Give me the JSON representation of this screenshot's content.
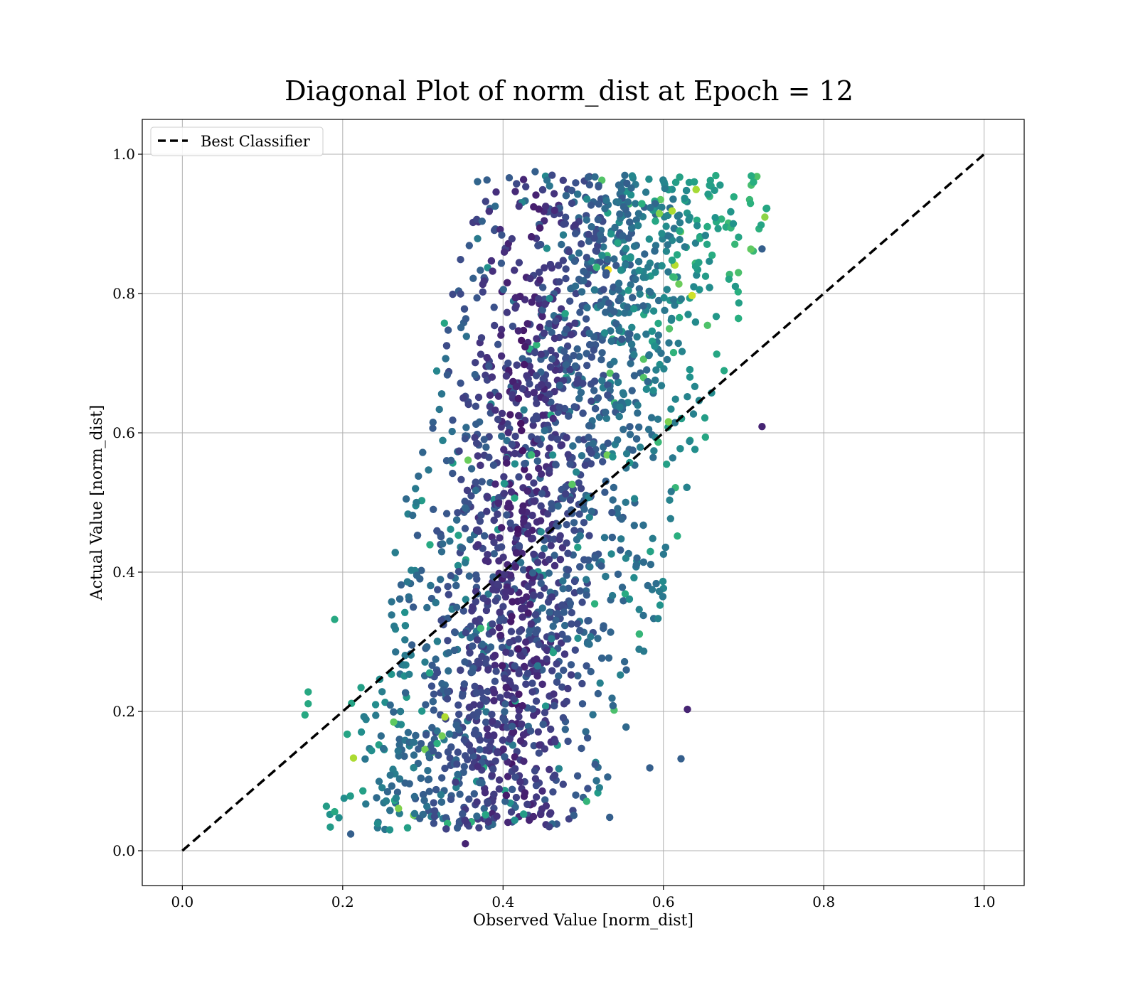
{
  "chart_data": {
    "type": "scatter",
    "title": "Diagonal Plot of norm_dist at Epoch = 12",
    "xlabel": "Observed Value [norm_dist]",
    "ylabel": "Actual Value [norm_dist]",
    "xlim": [
      -0.05,
      1.05
    ],
    "ylim": [
      -0.05,
      1.05
    ],
    "xticks": [
      0.0,
      0.2,
      0.4,
      0.6,
      0.8,
      1.0
    ],
    "yticks": [
      0.0,
      0.2,
      0.4,
      0.6,
      0.8,
      1.0
    ],
    "xtick_labels": [
      "0.0",
      "0.2",
      "0.4",
      "0.6",
      "0.8",
      "1.0"
    ],
    "ytick_labels": [
      "0.0",
      "0.2",
      "0.4",
      "0.6",
      "0.8",
      "1.0"
    ],
    "grid": true,
    "legend": {
      "position": "top-left",
      "entries": [
        "Best Classifier"
      ]
    },
    "colormap": "viridis",
    "reference_line": {
      "name": "Best Classifier",
      "x": [
        0.0,
        1.0
      ],
      "y": [
        0.0,
        1.0
      ],
      "style": "dashed",
      "color": "#000000"
    },
    "point_cloud": {
      "description_free": true,
      "approx_count": 2600,
      "x_range": [
        0.15,
        0.72
      ],
      "y_range": [
        0.01,
        0.98
      ],
      "shape": "sheared band: lower-left edge from (0.18,0.05) to (0.40,0.95); upper-right edge from (0.50,0.05) to (0.72,0.95)",
      "outliers": [
        {
          "x": 0.153,
          "y": 0.195
        },
        {
          "x": 0.157,
          "y": 0.228
        },
        {
          "x": 0.157,
          "y": 0.211
        },
        {
          "x": 0.19,
          "y": 0.056
        },
        {
          "x": 0.19,
          "y": 0.332
        },
        {
          "x": 0.21,
          "y": 0.024
        },
        {
          "x": 0.353,
          "y": 0.01
        },
        {
          "x": 0.533,
          "y": 0.048
        },
        {
          "x": 0.583,
          "y": 0.119
        },
        {
          "x": 0.63,
          "y": 0.203
        },
        {
          "x": 0.622,
          "y": 0.132
        },
        {
          "x": 0.723,
          "y": 0.864
        },
        {
          "x": 0.723,
          "y": 0.609
        },
        {
          "x": 0.44,
          "y": 0.975
        },
        {
          "x": 0.38,
          "y": 0.963
        }
      ]
    },
    "colors": {
      "dark": "#440154",
      "mid_dark": "#3b528b",
      "mid": "#21918c",
      "mid_light": "#5ec962",
      "light": "#b5de2b"
    }
  }
}
